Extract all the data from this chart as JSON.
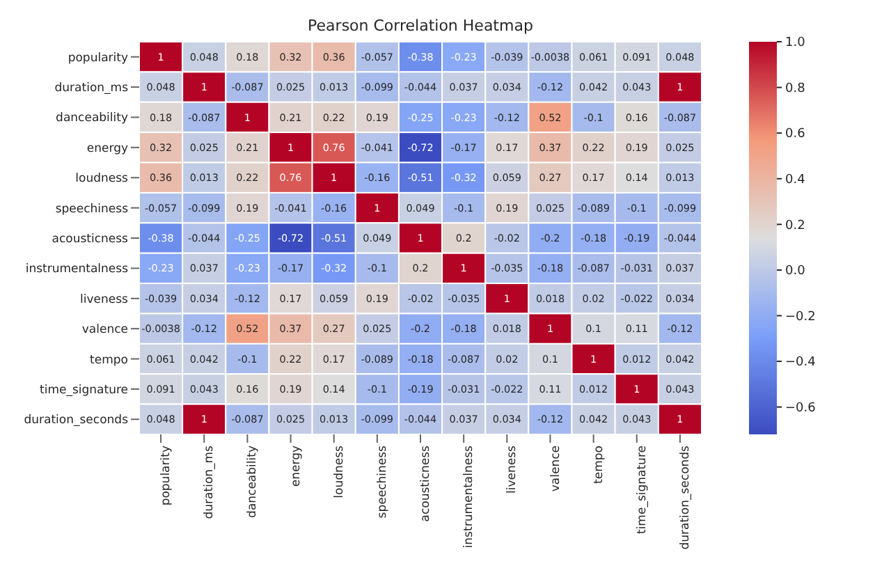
{
  "chart_data": {
    "type": "heatmap",
    "title": "Pearson Correlation Heatmap",
    "categories": [
      "popularity",
      "duration_ms",
      "danceability",
      "energy",
      "loudness",
      "speechiness",
      "acousticness",
      "instrumentalness",
      "liveness",
      "valence",
      "tempo",
      "time_signature",
      "duration_seconds"
    ],
    "y_categories": [
      "popularity",
      "duration_ms",
      "danceability",
      "energy",
      "loudness",
      "speechiness",
      "acousticness",
      "instrumentalness",
      "liveness",
      "valence",
      "tempo",
      "time_signature",
      "duration_seconds"
    ],
    "cells": [
      [
        1,
        0.048,
        0.18,
        0.32,
        0.36,
        -0.057,
        -0.38,
        -0.23,
        -0.039,
        -0.0038,
        0.061,
        0.091,
        0.048
      ],
      [
        0.048,
        1,
        -0.087,
        0.025,
        0.013,
        -0.099,
        -0.044,
        0.037,
        0.034,
        -0.12,
        0.042,
        0.043,
        1
      ],
      [
        0.18,
        -0.087,
        1,
        0.21,
        0.22,
        0.19,
        -0.25,
        -0.23,
        -0.12,
        0.52,
        -0.1,
        0.16,
        -0.087
      ],
      [
        0.32,
        0.025,
        0.21,
        1,
        0.76,
        -0.041,
        -0.72,
        -0.17,
        0.17,
        0.37,
        0.22,
        0.19,
        0.025
      ],
      [
        0.36,
        0.013,
        0.22,
        0.76,
        1,
        -0.16,
        -0.51,
        -0.32,
        0.059,
        0.27,
        0.17,
        0.14,
        0.013
      ],
      [
        -0.057,
        -0.099,
        0.19,
        -0.041,
        -0.16,
        1,
        0.049,
        -0.1,
        0.19,
        0.025,
        -0.089,
        -0.1,
        -0.099
      ],
      [
        -0.38,
        -0.044,
        -0.25,
        -0.72,
        -0.51,
        0.049,
        1,
        0.2,
        -0.02,
        -0.2,
        -0.18,
        -0.19,
        -0.044
      ],
      [
        -0.23,
        0.037,
        -0.23,
        -0.17,
        -0.32,
        -0.1,
        0.2,
        1,
        -0.035,
        -0.18,
        -0.087,
        -0.031,
        0.037
      ],
      [
        -0.039,
        0.034,
        -0.12,
        0.17,
        0.059,
        0.19,
        -0.02,
        -0.035,
        1,
        0.018,
        0.02,
        -0.022,
        0.034
      ],
      [
        -0.0038,
        -0.12,
        0.52,
        0.37,
        0.27,
        0.025,
        -0.2,
        -0.18,
        0.018,
        1,
        0.1,
        0.11,
        -0.12
      ],
      [
        0.061,
        0.042,
        -0.1,
        0.22,
        0.17,
        -0.089,
        -0.18,
        -0.087,
        0.02,
        0.1,
        1,
        0.012,
        0.042
      ],
      [
        0.091,
        0.043,
        0.16,
        0.19,
        0.14,
        -0.1,
        -0.19,
        -0.031,
        -0.022,
        0.11,
        0.012,
        1,
        0.043
      ],
      [
        0.048,
        1,
        -0.087,
        0.025,
        0.013,
        -0.099,
        -0.044,
        0.037,
        0.034,
        -0.12,
        0.042,
        0.043,
        1
      ]
    ],
    "clim": [
      -0.72,
      1.0
    ],
    "cticks": [
      {
        "value": -0.6,
        "label": "−0.6"
      },
      {
        "value": -0.4,
        "label": "−0.4"
      },
      {
        "value": -0.2,
        "label": "−0.2"
      },
      {
        "value": 0,
        "label": "0.0"
      },
      {
        "value": 0.2,
        "label": "0.2"
      },
      {
        "value": 0.4,
        "label": "0.4"
      },
      {
        "value": 0.6,
        "label": "0.6"
      },
      {
        "value": 0.8,
        "label": "0.8"
      },
      {
        "value": 1.0,
        "label": "1.0"
      }
    ],
    "data_labels": true
  }
}
